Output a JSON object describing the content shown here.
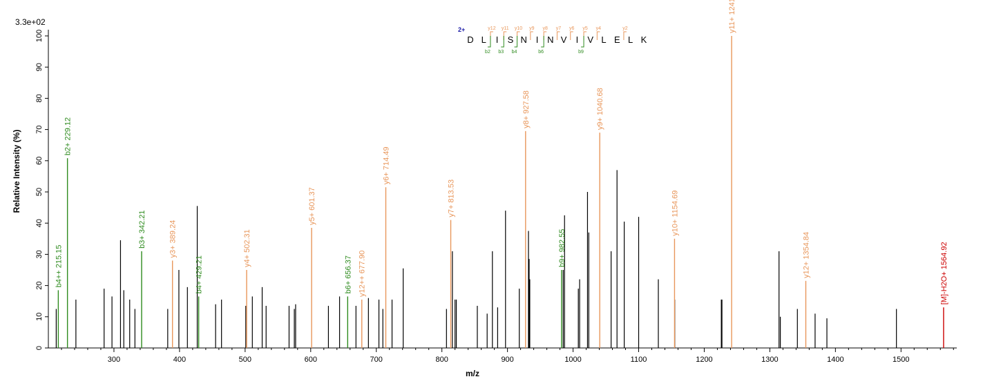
{
  "colors": {
    "b_ion": "#2e8b1e",
    "y_ion": "#e8965a",
    "precursor": "#cc0000",
    "other": "#000000",
    "charge": "#1a1aa6"
  },
  "chart_data": {
    "type": "bar",
    "title": "",
    "intensity_scale": "3.3e+02",
    "xlabel": "m/z",
    "ylabel": "Relative   Intensity (%)",
    "xlim": [
      200,
      1585
    ],
    "ylim": [
      0,
      100
    ],
    "xticks": [
      300,
      400,
      500,
      600,
      700,
      800,
      900,
      1000,
      1100,
      1200,
      1300,
      1400,
      1500
    ],
    "yticks": [
      0,
      10,
      20,
      30,
      40,
      50,
      60,
      70,
      80,
      90,
      100
    ],
    "peptide": {
      "charge": "2+",
      "residues": [
        "D",
        "L",
        "I",
        "S",
        "N",
        "I",
        "N",
        "V",
        "I",
        "V",
        "L",
        "E",
        "L",
        "K"
      ],
      "y_fragments": [
        {
          "label": "y12",
          "after": 2
        },
        {
          "label": "y11",
          "after": 3
        },
        {
          "label": "y10",
          "after": 4
        },
        {
          "label": "y9",
          "after": 5
        },
        {
          "label": "y8",
          "after": 6
        },
        {
          "label": "y7",
          "after": 7
        },
        {
          "label": "y6",
          "after": 8
        },
        {
          "label": "y5",
          "after": 9
        },
        {
          "label": "y4",
          "after": 10
        },
        {
          "label": "y2",
          "after": 12
        }
      ],
      "b_fragments": [
        {
          "label": "b2",
          "after": 2
        },
        {
          "label": "b3",
          "after": 3
        },
        {
          "label": "b4",
          "after": 4
        },
        {
          "label": "b6",
          "after": 6
        },
        {
          "label": "b9",
          "after": 9
        }
      ]
    },
    "annotated_peaks": [
      {
        "mz": 215.15,
        "intensity": 18.5,
        "ion": "b",
        "label": "b4++ 215.15"
      },
      {
        "mz": 229.12,
        "intensity": 60.8,
        "ion": "b",
        "label": "b2+ 229.12"
      },
      {
        "mz": 342.21,
        "intensity": 31.0,
        "ion": "b",
        "label": "b3+ 342.21"
      },
      {
        "mz": 389.24,
        "intensity": 28.0,
        "ion": "y",
        "label": "y3+ 389.24"
      },
      {
        "mz": 429.21,
        "intensity": 16.5,
        "ion": "b",
        "label": "b4+ 429.21"
      },
      {
        "mz": 502.31,
        "intensity": 25.0,
        "ion": "y",
        "label": "y4+ 502.31"
      },
      {
        "mz": 601.37,
        "intensity": 38.5,
        "ion": "y",
        "label": "y5+ 601.37"
      },
      {
        "mz": 656.37,
        "intensity": 16.5,
        "ion": "b",
        "label": "b6+ 656.37"
      },
      {
        "mz": 677.9,
        "intensity": 15.5,
        "ion": "y",
        "label": "y12++ 677.90"
      },
      {
        "mz": 714.49,
        "intensity": 51.5,
        "ion": "y",
        "label": "y6+ 714.49"
      },
      {
        "mz": 813.53,
        "intensity": 41.0,
        "ion": "y",
        "label": "y7+ 813.53"
      },
      {
        "mz": 927.58,
        "intensity": 69.5,
        "ion": "y",
        "label": "y8+ 927.58"
      },
      {
        "mz": 982.55,
        "intensity": 25.0,
        "ion": "b",
        "label": "b9+ 982.55"
      },
      {
        "mz": 1040.68,
        "intensity": 69.0,
        "ion": "y",
        "label": "y9+ 1040.68"
      },
      {
        "mz": 1154.69,
        "intensity": 35.0,
        "ion": "y",
        "label": "y10+ 1154.69"
      },
      {
        "mz": 1241.75,
        "intensity": 100.0,
        "ion": "y",
        "label": "y11+ 1241.75"
      },
      {
        "mz": 1354.84,
        "intensity": 21.5,
        "ion": "y",
        "label": "y12+ 1354.84"
      },
      {
        "mz": 1564.92,
        "intensity": 13.0,
        "ion": "precursor",
        "label": "[M]-H2O+ 1564.92"
      }
    ],
    "other_peaks": [
      {
        "mz": 212,
        "intensity": 12.5
      },
      {
        "mz": 242,
        "intensity": 15.5
      },
      {
        "mz": 285,
        "intensity": 19.0
      },
      {
        "mz": 297,
        "intensity": 16.5
      },
      {
        "mz": 310,
        "intensity": 34.5
      },
      {
        "mz": 315,
        "intensity": 18.5
      },
      {
        "mz": 324,
        "intensity": 15.5
      },
      {
        "mz": 332,
        "intensity": 12.5
      },
      {
        "mz": 382,
        "intensity": 12.5
      },
      {
        "mz": 399,
        "intensity": 25.0
      },
      {
        "mz": 412,
        "intensity": 19.5
      },
      {
        "mz": 427,
        "intensity": 45.5
      },
      {
        "mz": 455,
        "intensity": 14.0
      },
      {
        "mz": 464,
        "intensity": 15.5
      },
      {
        "mz": 501,
        "intensity": 13.5
      },
      {
        "mz": 511,
        "intensity": 16.5
      },
      {
        "mz": 526,
        "intensity": 19.5
      },
      {
        "mz": 532,
        "intensity": 13.5
      },
      {
        "mz": 567,
        "intensity": 13.5
      },
      {
        "mz": 575,
        "intensity": 12.5
      },
      {
        "mz": 577,
        "intensity": 14.0
      },
      {
        "mz": 627,
        "intensity": 13.5
      },
      {
        "mz": 644,
        "intensity": 16.5
      },
      {
        "mz": 669,
        "intensity": 13.5
      },
      {
        "mz": 688,
        "intensity": 16.0
      },
      {
        "mz": 704,
        "intensity": 15.5
      },
      {
        "mz": 710,
        "intensity": 12.5
      },
      {
        "mz": 724,
        "intensity": 15.5
      },
      {
        "mz": 741,
        "intensity": 25.5
      },
      {
        "mz": 807,
        "intensity": 12.5
      },
      {
        "mz": 816,
        "intensity": 31.0
      },
      {
        "mz": 820,
        "intensity": 15.5
      },
      {
        "mz": 822,
        "intensity": 15.5
      },
      {
        "mz": 854,
        "intensity": 13.5
      },
      {
        "mz": 869,
        "intensity": 11.0
      },
      {
        "mz": 877,
        "intensity": 31.0
      },
      {
        "mz": 885,
        "intensity": 13.0
      },
      {
        "mz": 897,
        "intensity": 44.0
      },
      {
        "mz": 918,
        "intensity": 19.0
      },
      {
        "mz": 932,
        "intensity": 37.5
      },
      {
        "mz": 933,
        "intensity": 28.5
      },
      {
        "mz": 934,
        "intensity": 22.0
      },
      {
        "mz": 985,
        "intensity": 25.0
      },
      {
        "mz": 987,
        "intensity": 42.5
      },
      {
        "mz": 1008,
        "intensity": 19.0
      },
      {
        "mz": 1010,
        "intensity": 22.0
      },
      {
        "mz": 1022,
        "intensity": 50.0
      },
      {
        "mz": 1024,
        "intensity": 37.0
      },
      {
        "mz": 1058,
        "intensity": 31.0
      },
      {
        "mz": 1067,
        "intensity": 57.0
      },
      {
        "mz": 1078,
        "intensity": 40.5
      },
      {
        "mz": 1100,
        "intensity": 42.0
      },
      {
        "mz": 1130,
        "intensity": 22.0
      },
      {
        "mz": 1155,
        "intensity": 15.5
      },
      {
        "mz": 1226,
        "intensity": 15.5
      },
      {
        "mz": 1227,
        "intensity": 15.5
      },
      {
        "mz": 1314,
        "intensity": 31.0
      },
      {
        "mz": 1316,
        "intensity": 10.0
      },
      {
        "mz": 1342,
        "intensity": 12.5
      },
      {
        "mz": 1369,
        "intensity": 11.0
      },
      {
        "mz": 1387,
        "intensity": 9.5
      },
      {
        "mz": 1493,
        "intensity": 12.5
      }
    ]
  }
}
